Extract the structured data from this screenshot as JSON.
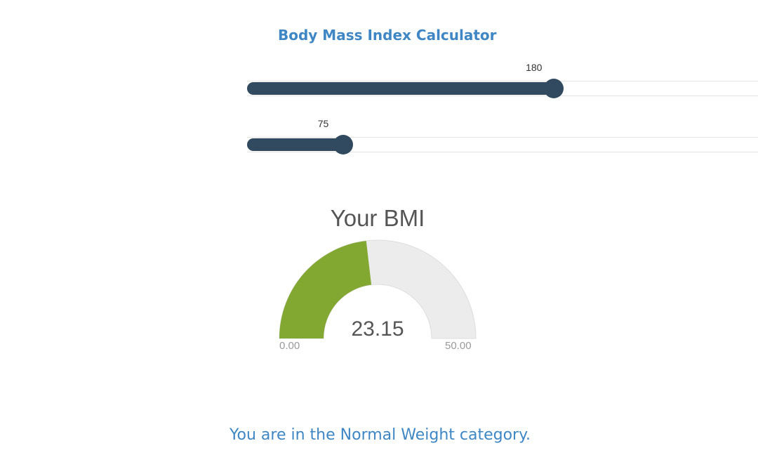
{
  "title": "Body Mass Index Calculator",
  "sliders": {
    "height": {
      "value": 180,
      "label": "180",
      "min": 0,
      "max": 300
    },
    "weight": {
      "value": 75,
      "label": "75",
      "min": 0,
      "max": 400
    }
  },
  "gauge": {
    "title": "Your BMI",
    "value": 23.15,
    "value_label": "23.15",
    "min": 0,
    "max": 50,
    "min_label": "0.00",
    "max_label": "50.00",
    "fill_color": "#82a832",
    "empty_color": "#ececec"
  },
  "result": {
    "text": "You are in the Normal Weight category."
  },
  "colors": {
    "accent": "#3f87c4",
    "slider": "#324a60"
  }
}
